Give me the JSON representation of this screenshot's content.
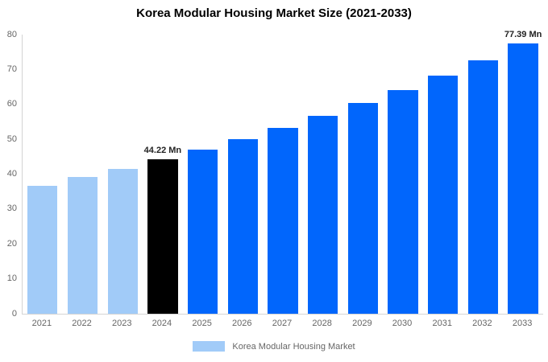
{
  "title": "Korea Modular Housing Market Size (2021-2033)",
  "colors": {
    "forecast_blue": "#0166fc",
    "history_light_blue": "#a1cbf8",
    "highlight_black": "#000000",
    "axis_line": "#d4d4d4",
    "tick_text": "#666666",
    "data_label_text": "#222222"
  },
  "legend": {
    "label": "Korea Modular Housing Market",
    "swatch_color": "#a1cbf8"
  },
  "chart_data": {
    "type": "bar",
    "title": "Korea Modular Housing Market Size (2021-2033)",
    "unit": "Mn",
    "categories": [
      "2021",
      "2022",
      "2023",
      "2024",
      "2025",
      "2026",
      "2027",
      "2028",
      "2029",
      "2030",
      "2031",
      "2032",
      "2033"
    ],
    "values": [
      36.7,
      39.1,
      41.6,
      44.22,
      47.1,
      50.1,
      53.3,
      56.7,
      60.3,
      64.2,
      68.3,
      72.6,
      77.39
    ],
    "bar_colors": [
      "#a1cbf8",
      "#a1cbf8",
      "#a1cbf8",
      "#000000",
      "#0166fc",
      "#0166fc",
      "#0166fc",
      "#0166fc",
      "#0166fc",
      "#0166fc",
      "#0166fc",
      "#0166fc",
      "#0166fc"
    ],
    "annotations": [
      {
        "category": "2024",
        "text": "44.22 Mn"
      },
      {
        "category": "2033",
        "text": "77.39 Mn"
      }
    ],
    "xlabel": "",
    "ylabel": "",
    "ylim": [
      0,
      80
    ],
    "yticks": [
      0,
      10,
      20,
      30,
      40,
      50,
      60,
      70,
      80
    ],
    "grid": false,
    "legend_position": "bottom"
  }
}
